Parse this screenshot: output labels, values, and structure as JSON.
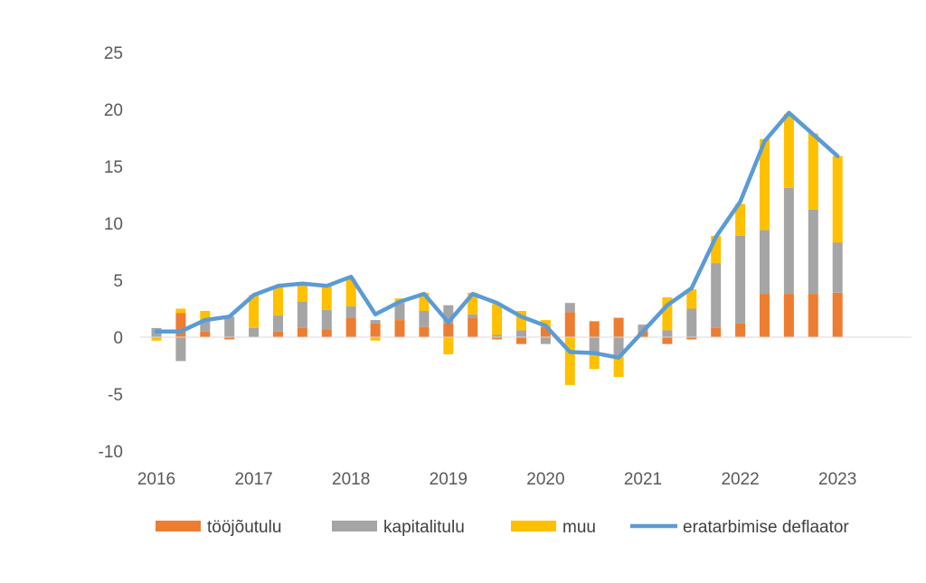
{
  "chart_data": {
    "type": "bar",
    "stacked": true,
    "title": "",
    "xlabel": "",
    "ylabel": "",
    "ylim": [
      -10,
      25
    ],
    "yticks": [
      25,
      20,
      15,
      10,
      5,
      0,
      -5,
      -10
    ],
    "xtick_labels": [
      "2016",
      "2017",
      "2018",
      "2019",
      "2020",
      "2021",
      "2022",
      "2023"
    ],
    "grid": false,
    "legend_position": "bottom",
    "quarters_per_year": 4,
    "first_year": 2016,
    "series": [
      {
        "name": "tööjõutulu",
        "kind": "bar",
        "color": "#ED7D31",
        "values": [
          0.0,
          2.1,
          0.5,
          -0.2,
          0.0,
          0.5,
          0.8,
          0.7,
          1.7,
          1.2,
          1.5,
          0.9,
          1.2,
          1.7,
          -0.2,
          -0.6,
          0.9,
          2.2,
          1.4,
          1.7,
          0.5,
          -0.6,
          -0.2,
          0.8,
          1.2,
          3.8,
          3.8,
          3.8,
          3.9
        ]
      },
      {
        "name": "kapitalitulu",
        "kind": "bar",
        "color": "#A5A5A5",
        "values": [
          0.8,
          -2.1,
          1.0,
          1.8,
          0.8,
          1.4,
          2.3,
          1.7,
          1.0,
          0.3,
          1.5,
          1.4,
          1.6,
          0.3,
          0.2,
          0.6,
          -0.6,
          0.8,
          -1.5,
          -1.6,
          0.6,
          0.6,
          2.5,
          5.7,
          7.7,
          5.6,
          9.3,
          7.4,
          4.4
        ]
      },
      {
        "name": "muu",
        "kind": "bar",
        "color": "#FFC000",
        "values": [
          -0.3,
          0.4,
          0.8,
          0.0,
          2.9,
          2.5,
          1.6,
          2.1,
          2.4,
          -0.3,
          0.4,
          1.6,
          -1.5,
          1.9,
          2.7,
          1.7,
          0.6,
          -4.2,
          -1.3,
          -1.9,
          0.0,
          2.9,
          1.7,
          2.4,
          2.8,
          8.0,
          6.5,
          6.7,
          7.6
        ]
      },
      {
        "name": "eratarbimise deflaator",
        "kind": "line",
        "color": "#5B9BD5",
        "values": [
          0.5,
          0.5,
          1.5,
          1.8,
          3.7,
          4.5,
          4.7,
          4.5,
          5.3,
          2.0,
          3.1,
          3.8,
          1.3,
          3.8,
          3.0,
          1.8,
          1.0,
          -1.3,
          -1.4,
          -1.8,
          0.5,
          2.8,
          4.3,
          8.8,
          11.9,
          17.2,
          19.7,
          17.8,
          15.9
        ]
      }
    ]
  }
}
